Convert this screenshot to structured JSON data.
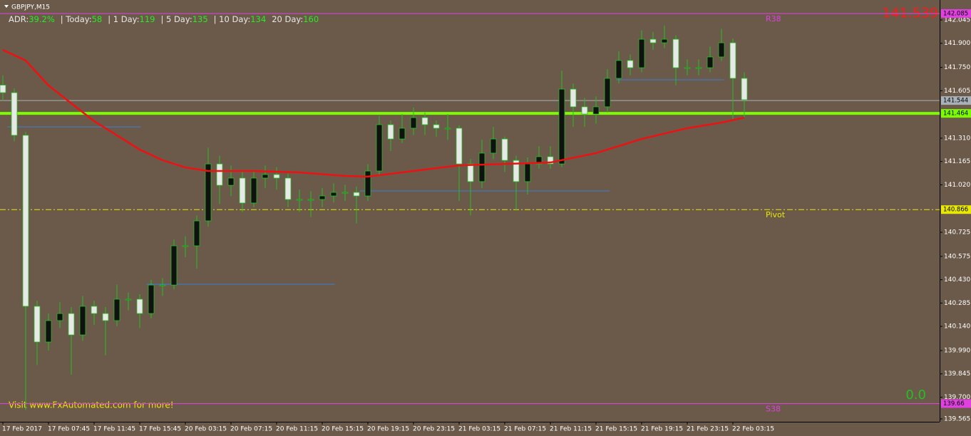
{
  "chart_data": {
    "type": "candlestick",
    "title": "GBPJPY,M15",
    "categories": [
      "17 Feb 2017",
      null,
      null,
      null,
      "17 Feb 07:45",
      null,
      null,
      null,
      "17 Feb 11:45",
      null,
      null,
      null,
      "17 Feb 15:45",
      null,
      null,
      null,
      "20 Feb 03:15",
      null,
      null,
      null,
      "20 Feb 07:15",
      null,
      null,
      null,
      "20 Feb 11:15",
      null,
      null,
      null,
      "20 Feb 15:15",
      null,
      null,
      null,
      "20 Feb 19:15",
      null,
      null,
      null,
      "20 Feb 23:15",
      null,
      null,
      null,
      "21 Feb 03:15",
      null,
      null,
      null,
      "21 Feb 07:15",
      null,
      null,
      null,
      "21 Feb 11:15",
      null,
      null,
      null,
      "21 Feb 15:15",
      null,
      null,
      null,
      "21 Feb 19:15",
      null,
      null,
      null,
      "21 Feb 23:15",
      null,
      null,
      null,
      "22 Feb 03:15",
      null
    ],
    "open": [
      141.64,
      141.593,
      141.328,
      140.265,
      140.043,
      140.176,
      140.22,
      140.087,
      140.265,
      140.22,
      140.176,
      140.309,
      140.309,
      140.22,
      140.397,
      140.397,
      140.641,
      140.641,
      140.796,
      141.15,
      141.017,
      141.062,
      140.907,
      141.062,
      141.084,
      141.062,
      140.929,
      140.929,
      140.929,
      140.951,
      140.973,
      140.973,
      140.951,
      141.106,
      141.394,
      141.305,
      141.372,
      141.438,
      141.394,
      141.372,
      141.372,
      141.15,
      141.04,
      141.217,
      141.305,
      141.172,
      141.04,
      141.15,
      141.195,
      141.15,
      141.615,
      141.505,
      141.46,
      141.505,
      141.682,
      141.793,
      141.748,
      141.925,
      141.903,
      141.925,
      141.748,
      141.748,
      141.748,
      141.815,
      141.903,
      141.682
    ],
    "high": [
      141.7,
      141.62,
      141.35,
      140.3,
      140.22,
      140.29,
      140.26,
      140.33,
      140.3,
      140.26,
      140.4,
      140.35,
      140.34,
      140.43,
      140.44,
      140.68,
      140.7,
      140.83,
      141.25,
      141.2,
      141.14,
      141.1,
      141.11,
      141.14,
      141.13,
      141.09,
      140.99,
      140.98,
      141.0,
      141.03,
      141.02,
      141.01,
      141.15,
      141.45,
      141.42,
      141.46,
      141.5,
      141.47,
      141.42,
      141.46,
      141.39,
      141.18,
      141.3,
      141.38,
      141.32,
      141.2,
      141.19,
      141.26,
      141.26,
      141.73,
      141.65,
      141.56,
      141.57,
      141.74,
      141.85,
      141.83,
      141.98,
      141.97,
      142.01,
      141.95,
      141.8,
      141.8,
      141.88,
      141.99,
      141.93,
      141.72
    ],
    "low": [
      141.54,
      141.29,
      139.62,
      139.9,
      139.99,
      140.13,
      139.84,
      140.05,
      140.15,
      139.96,
      140.14,
      140.24,
      140.13,
      140.19,
      140.33,
      140.37,
      140.57,
      140.5,
      140.76,
      140.9,
      140.95,
      140.85,
      140.88,
      141.0,
      140.99,
      140.88,
      140.85,
      140.82,
      140.88,
      140.91,
      140.92,
      140.78,
      140.92,
      141.08,
      141.23,
      141.28,
      141.33,
      141.33,
      141.32,
      141.3,
      140.92,
      140.83,
      141.0,
      141.18,
      141.1,
      140.86,
      140.96,
      141.12,
      141.12,
      141.13,
      141.38,
      141.38,
      141.4,
      141.47,
      141.65,
      141.7,
      141.72,
      141.86,
      141.87,
      141.64,
      141.7,
      141.7,
      141.72,
      141.79,
      141.43,
      141.44
    ],
    "close": [
      141.593,
      141.328,
      140.265,
      140.043,
      140.176,
      140.22,
      140.087,
      140.265,
      140.22,
      140.176,
      140.309,
      140.309,
      140.22,
      140.397,
      140.397,
      140.641,
      140.641,
      140.796,
      141.15,
      141.017,
      141.062,
      140.907,
      141.062,
      141.084,
      141.062,
      140.929,
      140.929,
      140.929,
      140.951,
      140.973,
      140.973,
      140.951,
      141.106,
      141.394,
      141.305,
      141.372,
      141.438,
      141.394,
      141.372,
      141.372,
      141.15,
      141.04,
      141.217,
      141.305,
      141.172,
      141.04,
      141.15,
      141.195,
      141.15,
      141.615,
      141.505,
      141.46,
      141.505,
      141.682,
      141.793,
      141.748,
      141.925,
      141.903,
      141.925,
      141.748,
      141.748,
      141.748,
      141.815,
      141.903,
      141.682,
      141.549
    ],
    "up_color": "#111111",
    "down_color": "#e8e8e8",
    "wick_color": "#22c022",
    "ylim": [
      139.556,
      142.169
    ],
    "yticks": [
      142.045,
      {
        "value": 141.9,
        "label": "141.900"
      },
      {
        "value": 141.75,
        "label": "141.750"
      },
      141.605,
      {
        "value": 141.31,
        "label": "141.310"
      },
      141.165,
      {
        "value": 141.02,
        "label": "141.020"
      },
      140.725,
      140.575,
      {
        "value": 140.43,
        "label": "140.430"
      },
      140.285,
      {
        "value": 140.14,
        "label": "140.140"
      },
      {
        "value": 139.99,
        "label": "139.990"
      },
      139.845,
      {
        "value": 139.7,
        "label": "139.700"
      },
      139.565
    ],
    "ma": {
      "color": "#ee1111",
      "x": [
        0,
        2,
        4,
        6,
        8,
        10,
        12,
        14,
        16,
        18,
        22,
        26,
        30,
        32,
        36,
        40,
        44,
        48,
        52,
        56,
        60,
        63,
        65
      ],
      "values": [
        141.859,
        141.793,
        141.638,
        141.527,
        141.416,
        141.328,
        141.239,
        141.173,
        141.128,
        141.106,
        141.106,
        141.097,
        141.075,
        141.071,
        141.106,
        141.141,
        141.15,
        141.159,
        141.217,
        141.305,
        141.372,
        141.407,
        141.438
      ]
    },
    "segments": {
      "color": "#3a7fd5",
      "items": [
        {
          "value": 141.38,
          "from": 0.4,
          "to": 12.1
        },
        {
          "value": 140.402,
          "from": 12.6,
          "to": 29.1
        },
        {
          "value": 140.982,
          "from": 31.3,
          "to": 53.2
        },
        {
          "value": 141.673,
          "from": 53.8,
          "to": 63.2
        }
      ]
    },
    "levels": [
      {
        "name": "R38",
        "value": 142.085,
        "color": "#e040e0"
      },
      {
        "name": "S38",
        "value": 139.66,
        "color": "#e040e0"
      },
      {
        "name": "Pivot",
        "value": 140.866,
        "color": "#e8e800",
        "dashed": true
      },
      {
        "value": 141.464,
        "color": "#7cfc00",
        "width": 4
      },
      {
        "value": 141.544,
        "color": "#a8b0b8"
      }
    ],
    "stats": [
      {
        "label": "ADR:",
        "value": "39.2%"
      },
      {
        "label": "| Today:",
        "value": "58"
      },
      {
        "label": "| 1 Day:",
        "value": "119"
      },
      {
        "label": "| 5 Day:",
        "value": "135"
      },
      {
        "label": "| 10 Day:",
        "value": "134"
      },
      {
        "label": "20 Day:",
        "value": "160"
      }
    ],
    "big_price": "141.539",
    "big_zero": "0.0",
    "footer": "Visit www.FxAutomated.com for more!"
  }
}
